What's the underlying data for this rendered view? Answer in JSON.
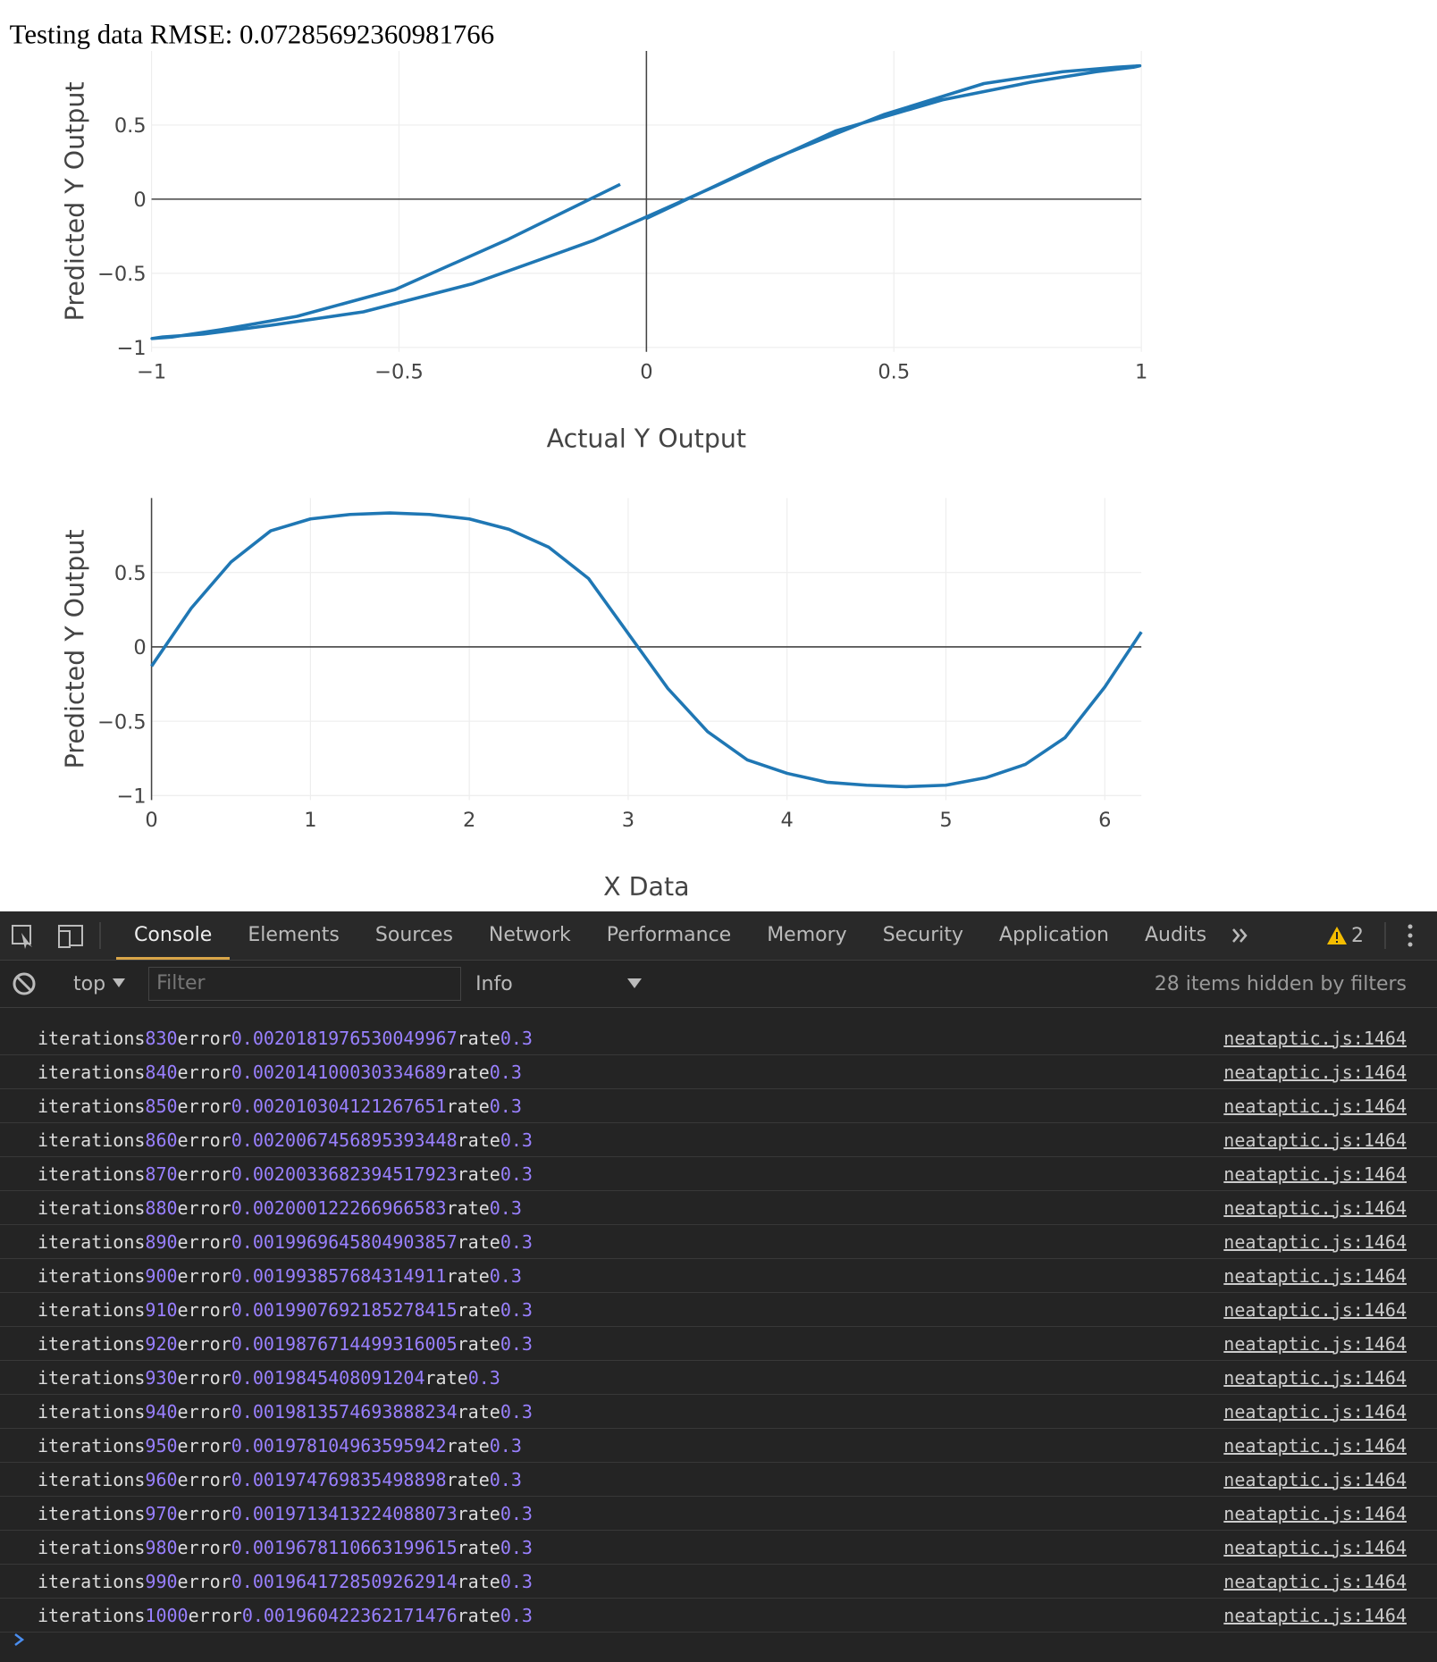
{
  "header": {
    "title": "Testing data RMSE: 0.07285692360981766"
  },
  "chart_data": [
    {
      "type": "line",
      "xlabel": "Actual Y Output",
      "ylabel": "Predicted Y Output",
      "color": "#1f77b4",
      "grid": true,
      "x": [
        0,
        0.247,
        0.479,
        0.682,
        0.841,
        0.949,
        0.997,
        0.984,
        0.909,
        0.778,
        0.598,
        0.382,
        0.141,
        -0.108,
        -0.351,
        -0.572,
        -0.757,
        -0.895,
        -0.978,
        -0.999,
        -0.959,
        -0.859,
        -0.706,
        -0.508,
        -0.279,
        -0.053
      ],
      "series": [
        {
          "values": [
            -0.13,
            0.26,
            0.57,
            0.78,
            0.86,
            0.89,
            0.9,
            0.89,
            0.86,
            0.79,
            0.67,
            0.46,
            0.09,
            -0.28,
            -0.57,
            -0.76,
            -0.85,
            -0.91,
            -0.93,
            -0.94,
            -0.93,
            -0.88,
            -0.79,
            -0.61,
            -0.27,
            0.1
          ]
        }
      ],
      "xlim": [
        -1,
        1
      ],
      "ylim": [
        -1.03,
        1
      ],
      "xticks": [
        {
          "value": -1,
          "label": "−1"
        },
        {
          "value": -0.5,
          "label": "−0.5"
        },
        0,
        0.5,
        1
      ],
      "yticks": [
        {
          "value": -1,
          "label": "−1"
        },
        {
          "value": -0.5,
          "label": "−0.5"
        },
        0,
        0.5
      ]
    },
    {
      "type": "line",
      "xlabel": "X Data",
      "ylabel": "Predicted Y Output",
      "color": "#1f77b4",
      "grid": true,
      "x": [
        0,
        0.25,
        0.5,
        0.75,
        1,
        1.25,
        1.5,
        1.75,
        2,
        2.25,
        2.5,
        2.75,
        3,
        3.25,
        3.5,
        3.75,
        4,
        4.25,
        4.5,
        4.75,
        5,
        5.25,
        5.5,
        5.75,
        6,
        6.23
      ],
      "series": [
        {
          "values": [
            -0.13,
            0.26,
            0.57,
            0.78,
            0.86,
            0.89,
            0.9,
            0.89,
            0.86,
            0.79,
            0.67,
            0.46,
            0.09,
            -0.28,
            -0.57,
            -0.76,
            -0.85,
            -0.91,
            -0.93,
            -0.94,
            -0.93,
            -0.88,
            -0.79,
            -0.61,
            -0.27,
            0.1
          ]
        }
      ],
      "xlim": [
        0,
        6.23
      ],
      "ylim": [
        -1.03,
        1
      ],
      "xticks": [
        0,
        1,
        2,
        3,
        4,
        5,
        6
      ],
      "yticks": [
        {
          "value": -1,
          "label": "−1"
        },
        {
          "value": -0.5,
          "label": "−0.5"
        },
        0,
        0.5
      ]
    }
  ],
  "devtools": {
    "tabs": [
      "Console",
      "Elements",
      "Sources",
      "Network",
      "Performance",
      "Memory",
      "Security",
      "Application",
      "Audits"
    ],
    "warnings": "2",
    "context": "top",
    "filter": "Filter",
    "level": "Info",
    "hidden": "28 items hidden by filters",
    "words": {
      "iterations": "iterations",
      "error": "error",
      "rate": "rate"
    },
    "source": "neatаptic.js:1464",
    "logs": [
      {
        "iterations": 830,
        "error": "0.0020181976530049967",
        "rate": 0.3
      },
      {
        "iterations": 840,
        "error": "0.002014100030334689",
        "rate": 0.3
      },
      {
        "iterations": 850,
        "error": "0.002010304121267651",
        "rate": 0.3
      },
      {
        "iterations": 860,
        "error": "0.0020067456895393448",
        "rate": 0.3
      },
      {
        "iterations": 870,
        "error": "0.0020033682394517923",
        "rate": 0.3
      },
      {
        "iterations": 880,
        "error": "0.002000122266966583",
        "rate": 0.3
      },
      {
        "iterations": 890,
        "error": "0.0019969645804903857",
        "rate": 0.3
      },
      {
        "iterations": 900,
        "error": "0.001993857684314911",
        "rate": 0.3
      },
      {
        "iterations": 910,
        "error": "0.0019907692185278415",
        "rate": 0.3
      },
      {
        "iterations": 920,
        "error": "0.0019876714499316005",
        "rate": 0.3
      },
      {
        "iterations": 930,
        "error": "0.0019845408091204",
        "rate": 0.3
      },
      {
        "iterations": 940,
        "error": "0.0019813574693888234",
        "rate": 0.3
      },
      {
        "iterations": 950,
        "error": "0.001978104963595942",
        "rate": 0.3
      },
      {
        "iterations": 960,
        "error": "0.001974769835498898",
        "rate": 0.3
      },
      {
        "iterations": 970,
        "error": "0.0019713413224088073",
        "rate": 0.3
      },
      {
        "iterations": 980,
        "error": "0.0019678110663199615",
        "rate": 0.3
      },
      {
        "iterations": 990,
        "error": "0.0019641728509262914",
        "rate": 0.3
      },
      {
        "iterations": 1000,
        "error": "0.001960422362171476",
        "rate": 0.3
      }
    ]
  }
}
